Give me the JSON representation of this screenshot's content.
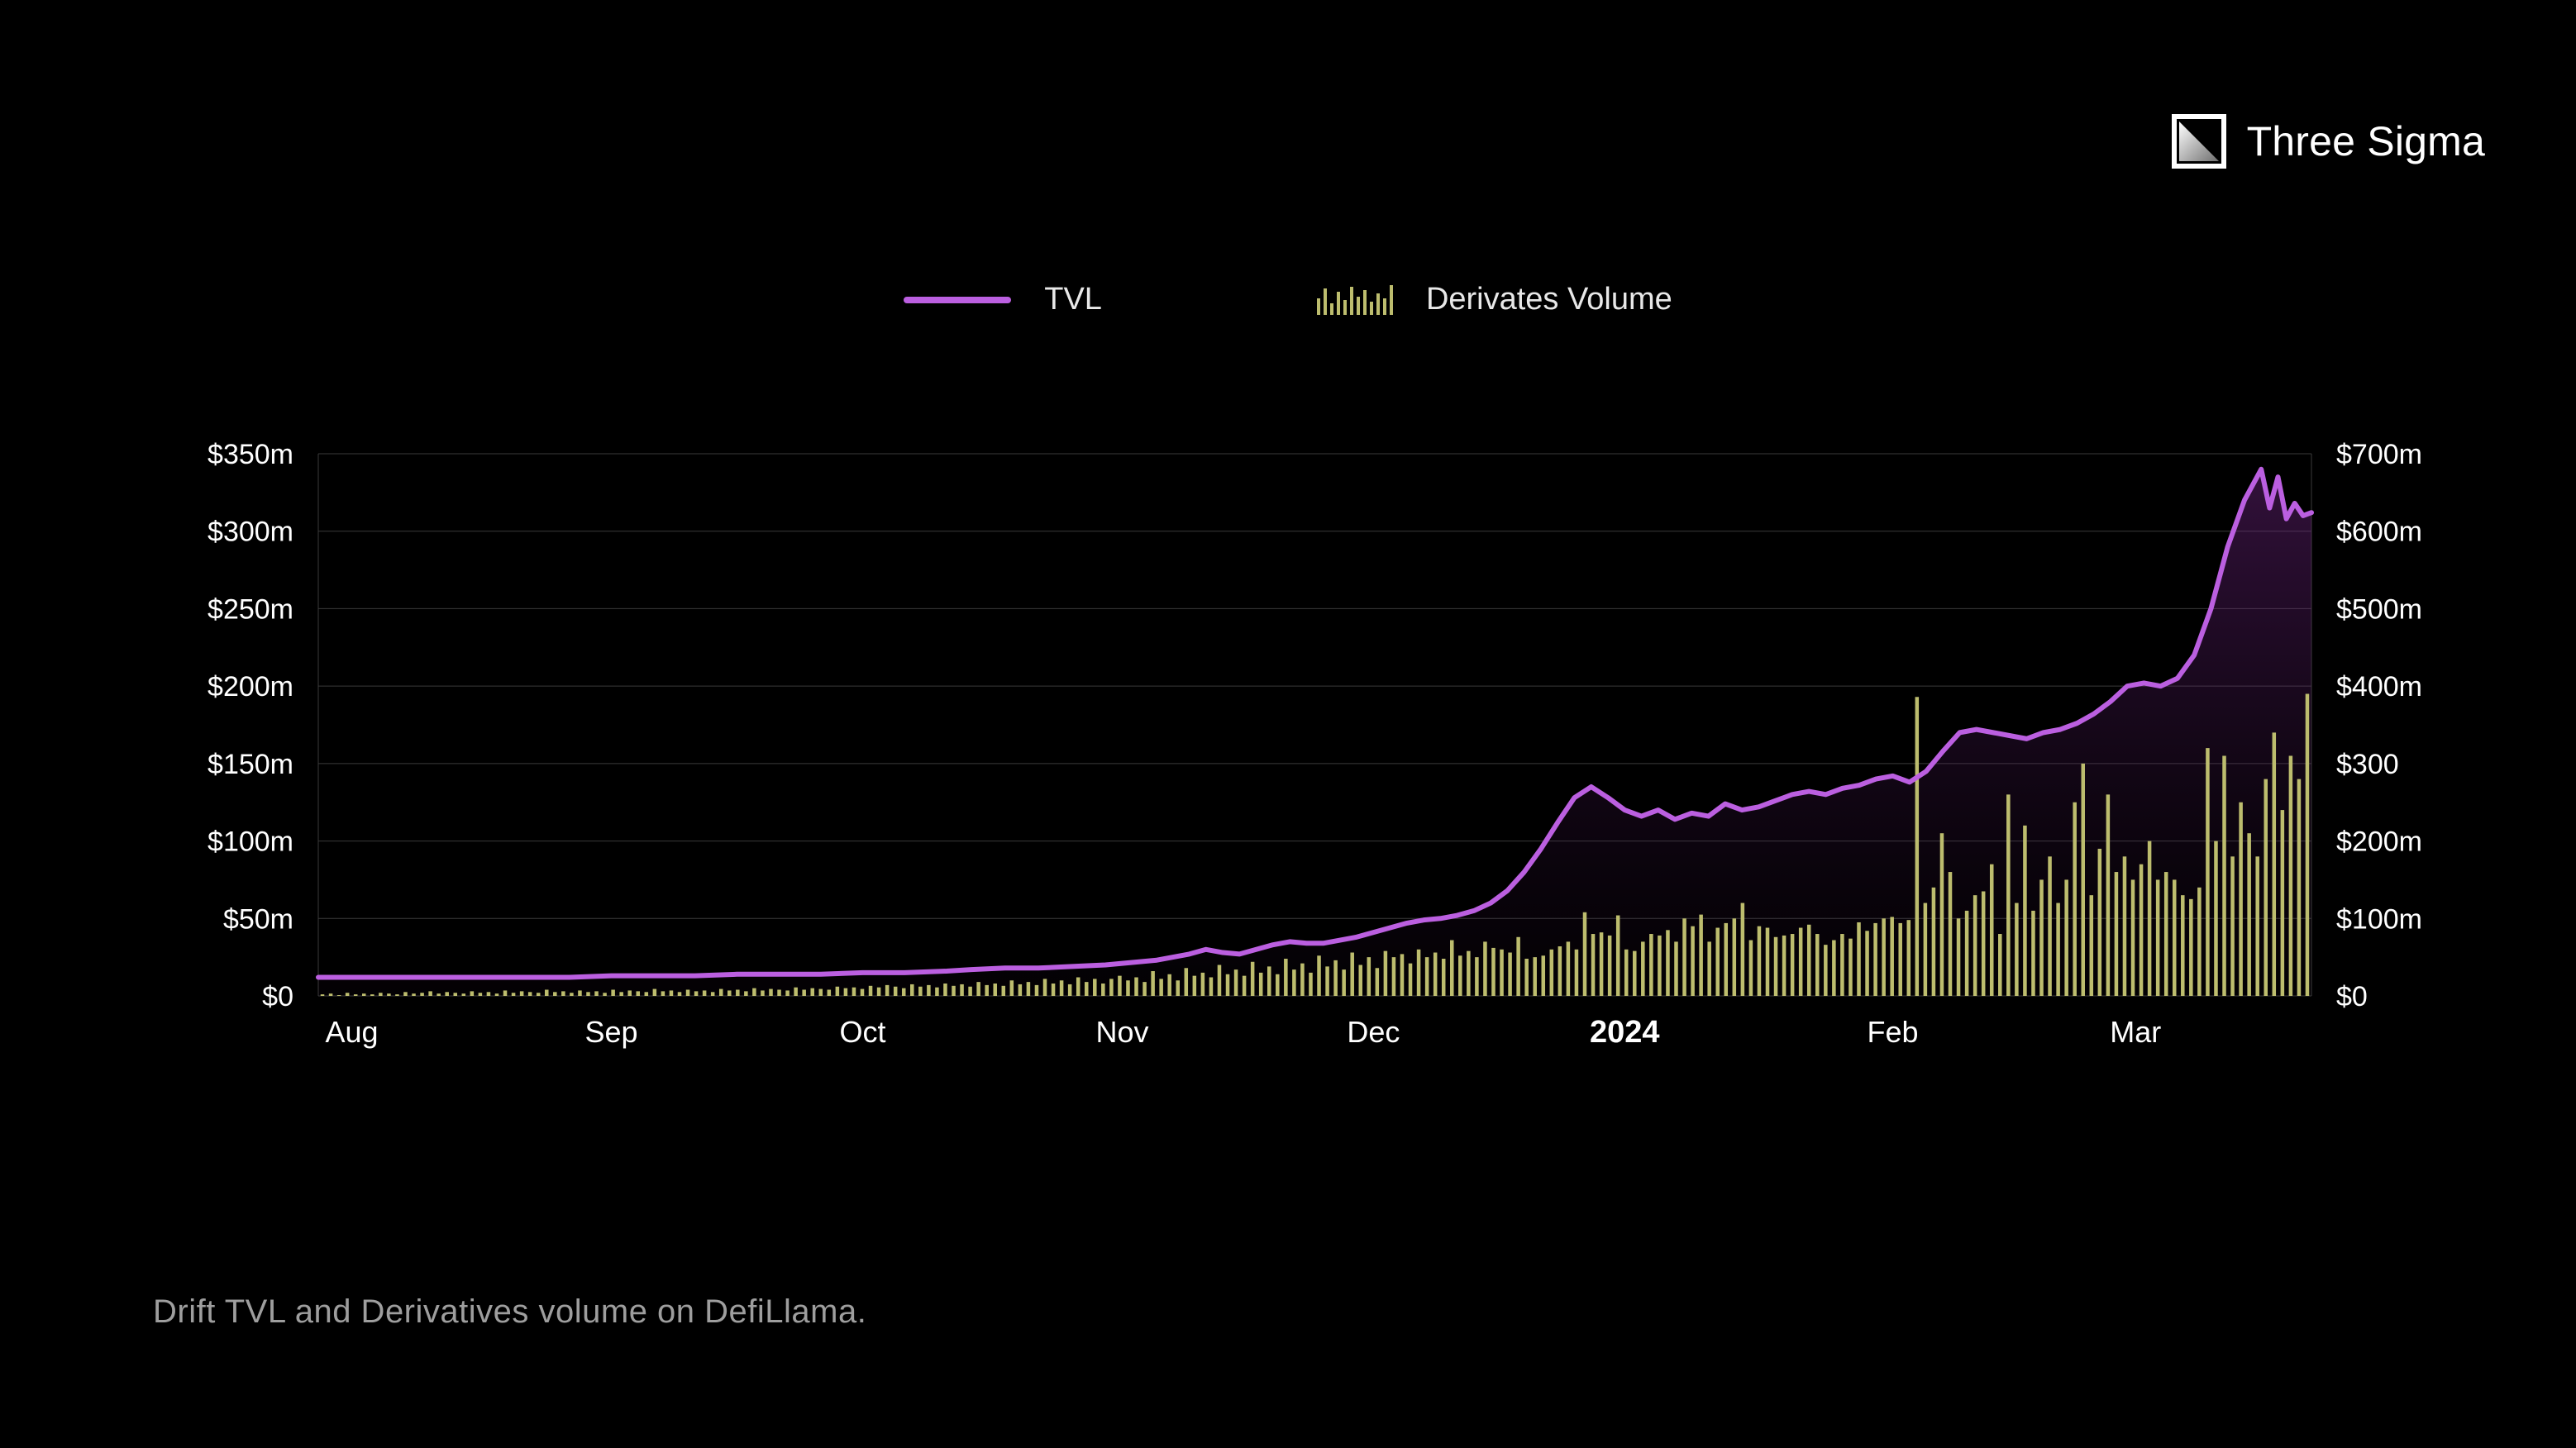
{
  "brand": {
    "name": "Three Sigma"
  },
  "legend": {
    "items": [
      {
        "label": "TVL",
        "type": "line",
        "color": "#bb5fe0"
      },
      {
        "label": "Derivates Volume",
        "type": "bars",
        "color": "#bdbd6e"
      }
    ]
  },
  "caption": "Drift TVL and Derivatives volume on DefiLlama.",
  "chart": {
    "type": "combo-line-bar",
    "background_color": "#000000",
    "grid_color": "#3a3a3a",
    "plot_border_color": "#3a3a3a",
    "left_axis": {
      "label_color": "#ffffff",
      "min": 0,
      "max": 350,
      "ticks": [
        {
          "v": 0,
          "label": "$0"
        },
        {
          "v": 50,
          "label": "$50m"
        },
        {
          "v": 100,
          "label": "$100m"
        },
        {
          "v": 150,
          "label": "$150m"
        },
        {
          "v": 200,
          "label": "$200m"
        },
        {
          "v": 250,
          "label": "$250m"
        },
        {
          "v": 300,
          "label": "$300m"
        },
        {
          "v": 350,
          "label": "$350m"
        }
      ]
    },
    "right_axis": {
      "label_color": "#ffffff",
      "min": 0,
      "max": 700,
      "ticks": [
        {
          "v": 0,
          "label": "$0"
        },
        {
          "v": 100,
          "label": "$100m"
        },
        {
          "v": 200,
          "label": "$200m"
        },
        {
          "v": 300,
          "label": "$300"
        },
        {
          "v": 400,
          "label": "$400m"
        },
        {
          "v": 500,
          "label": "$500m"
        },
        {
          "v": 600,
          "label": "$600m"
        },
        {
          "v": 700,
          "label": "$700m"
        }
      ]
    },
    "x_axis": {
      "labels": [
        {
          "t": 4,
          "label": "Aug",
          "bold": false
        },
        {
          "t": 35,
          "label": "Sep",
          "bold": false
        },
        {
          "t": 65,
          "label": "Oct",
          "bold": false
        },
        {
          "t": 96,
          "label": "Nov",
          "bold": false
        },
        {
          "t": 126,
          "label": "Dec",
          "bold": false
        },
        {
          "t": 156,
          "label": "2024",
          "bold": true
        },
        {
          "t": 188,
          "label": "Feb",
          "bold": false
        },
        {
          "t": 217,
          "label": "Mar",
          "bold": false
        }
      ],
      "t_min": 0,
      "t_max": 238
    },
    "tvl": {
      "color": "#bb5fe0",
      "area_top_color": "rgba(120,40,140,0.42)",
      "area_bottom_color": "rgba(60,20,70,0.05)",
      "line_width": 6,
      "points": [
        [
          0,
          12
        ],
        [
          5,
          12
        ],
        [
          10,
          12
        ],
        [
          15,
          12
        ],
        [
          20,
          12
        ],
        [
          25,
          12
        ],
        [
          30,
          12
        ],
        [
          35,
          13
        ],
        [
          40,
          13
        ],
        [
          45,
          13
        ],
        [
          50,
          14
        ],
        [
          55,
          14
        ],
        [
          60,
          14
        ],
        [
          65,
          15
        ],
        [
          70,
          15
        ],
        [
          75,
          16
        ],
        [
          78,
          17
        ],
        [
          82,
          18
        ],
        [
          86,
          18
        ],
        [
          90,
          19
        ],
        [
          94,
          20
        ],
        [
          96,
          21
        ],
        [
          100,
          23
        ],
        [
          102,
          25
        ],
        [
          104,
          27
        ],
        [
          106,
          30
        ],
        [
          108,
          28
        ],
        [
          110,
          27
        ],
        [
          112,
          30
        ],
        [
          114,
          33
        ],
        [
          116,
          35
        ],
        [
          118,
          34
        ],
        [
          120,
          34
        ],
        [
          122,
          36
        ],
        [
          124,
          38
        ],
        [
          126,
          41
        ],
        [
          128,
          44
        ],
        [
          130,
          47
        ],
        [
          132,
          49
        ],
        [
          134,
          50
        ],
        [
          136,
          52
        ],
        [
          138,
          55
        ],
        [
          140,
          60
        ],
        [
          142,
          68
        ],
        [
          144,
          80
        ],
        [
          146,
          95
        ],
        [
          148,
          112
        ],
        [
          150,
          128
        ],
        [
          152,
          135
        ],
        [
          154,
          128
        ],
        [
          156,
          120
        ],
        [
          158,
          116
        ],
        [
          160,
          120
        ],
        [
          162,
          114
        ],
        [
          164,
          118
        ],
        [
          166,
          116
        ],
        [
          168,
          124
        ],
        [
          170,
          120
        ],
        [
          172,
          122
        ],
        [
          174,
          126
        ],
        [
          176,
          130
        ],
        [
          178,
          132
        ],
        [
          180,
          130
        ],
        [
          182,
          134
        ],
        [
          184,
          136
        ],
        [
          186,
          140
        ],
        [
          188,
          142
        ],
        [
          190,
          138
        ],
        [
          192,
          145
        ],
        [
          194,
          158
        ],
        [
          196,
          170
        ],
        [
          198,
          172
        ],
        [
          200,
          170
        ],
        [
          202,
          168
        ],
        [
          204,
          166
        ],
        [
          206,
          170
        ],
        [
          208,
          172
        ],
        [
          210,
          176
        ],
        [
          212,
          182
        ],
        [
          214,
          190
        ],
        [
          216,
          200
        ],
        [
          218,
          202
        ],
        [
          220,
          200
        ],
        [
          222,
          205
        ],
        [
          224,
          220
        ],
        [
          226,
          250
        ],
        [
          228,
          290
        ],
        [
          230,
          320
        ],
        [
          232,
          340
        ],
        [
          233,
          315
        ],
        [
          234,
          335
        ],
        [
          235,
          308
        ],
        [
          236,
          318
        ],
        [
          237,
          310
        ],
        [
          238,
          312
        ]
      ]
    },
    "volume": {
      "color": "#bdbd6e",
      "bar_width_ratio": 0.45,
      "data": [
        2,
        3,
        1,
        4,
        2,
        3,
        2,
        4,
        3,
        2,
        5,
        3,
        4,
        6,
        3,
        5,
        4,
        3,
        6,
        4,
        5,
        3,
        7,
        4,
        6,
        5,
        4,
        8,
        5,
        6,
        4,
        7,
        5,
        6,
        4,
        8,
        5,
        7,
        6,
        5,
        9,
        6,
        7,
        5,
        8,
        6,
        7,
        5,
        9,
        7,
        8,
        6,
        10,
        7,
        9,
        8,
        7,
        11,
        8,
        10,
        9,
        8,
        12,
        10,
        11,
        9,
        13,
        11,
        14,
        12,
        10,
        15,
        12,
        14,
        11,
        16,
        13,
        15,
        12,
        18,
        14,
        16,
        13,
        20,
        15,
        18,
        14,
        22,
        16,
        20,
        15,
        24,
        18,
        22,
        16,
        22,
        26,
        20,
        24,
        18,
        32,
        22,
        28,
        20,
        36,
        26,
        30,
        24,
        40,
        28,
        34,
        26,
        44,
        30,
        38,
        28,
        48,
        34,
        42,
        30,
        52,
        38,
        46,
        34,
        56,
        40,
        50,
        36,
        58,
        50,
        54,
        42,
        60,
        50,
        56,
        48,
        72,
        52,
        58,
        50,
        70,
        62,
        60,
        56,
        76,
        48,
        50,
        52,
        60,
        64,
        70,
        60,
        108,
        80,
        82,
        78,
        104,
        60,
        58,
        70,
        80,
        78,
        85,
        70,
        100,
        90,
        105,
        70,
        88,
        94,
        100,
        120,
        72,
        90,
        88,
        76,
        78,
        80,
        88,
        92,
        80,
        66,
        72,
        80,
        74,
        95,
        84,
        94,
        100,
        102,
        94,
        98,
        386,
        120,
        140,
        210,
        160,
        100,
        110,
        130,
        135,
        170,
        80,
        260,
        120,
        220,
        110,
        150,
        180,
        120,
        150,
        250,
        300,
        130,
        190,
        260,
        160,
        180,
        150,
        170,
        200,
        150,
        160,
        150,
        130,
        125,
        140,
        320,
        200,
        310,
        180,
        250,
        210,
        180,
        280,
        340,
        240,
        310,
        280,
        390
      ]
    }
  }
}
